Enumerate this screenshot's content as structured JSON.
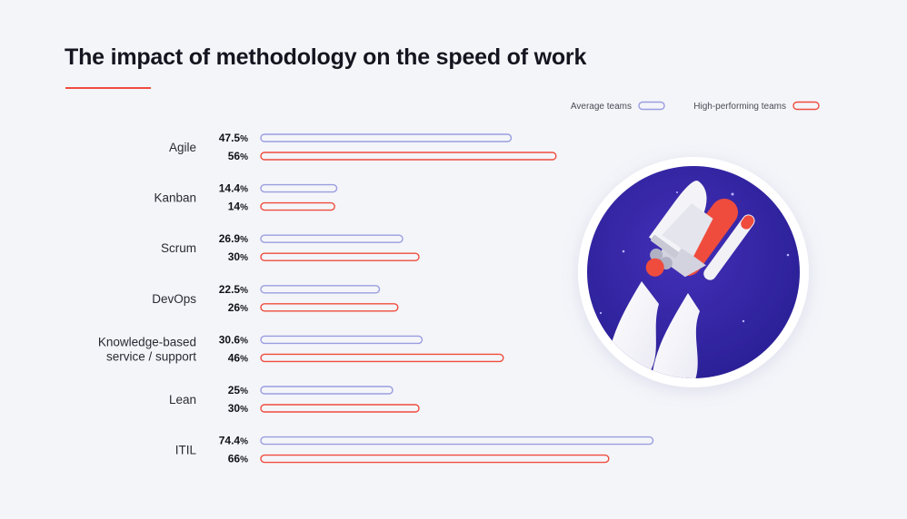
{
  "chart_data": {
    "type": "bar",
    "orientation": "horizontal",
    "title": "The impact of methodology on the speed of work",
    "categories": [
      "Agile",
      "Kanban",
      "Scrum",
      "DevOps",
      "Knowledge-based service / support",
      "Lean",
      "ITIL"
    ],
    "series": [
      {
        "name": "Average teams",
        "color": "#9a9de0",
        "values": [
          47.5,
          14.4,
          26.9,
          22.5,
          30.6,
          25,
          74.4
        ],
        "labels": [
          "47.5",
          "14.4",
          "26.9",
          "22.5",
          "30.6",
          "25",
          "74.4"
        ]
      },
      {
        "name": "High-performing teams",
        "color": "#ef4c3d",
        "values": [
          56,
          14,
          30,
          26,
          46,
          30,
          66
        ],
        "labels": [
          "56",
          "14",
          "30",
          "26",
          "46",
          "30",
          "66"
        ]
      }
    ],
    "value_suffix": "%",
    "legend_position": "top-right",
    "grid": false
  },
  "illustration": {
    "subject": "space shuttle launching",
    "icon": "rocket-icon"
  }
}
